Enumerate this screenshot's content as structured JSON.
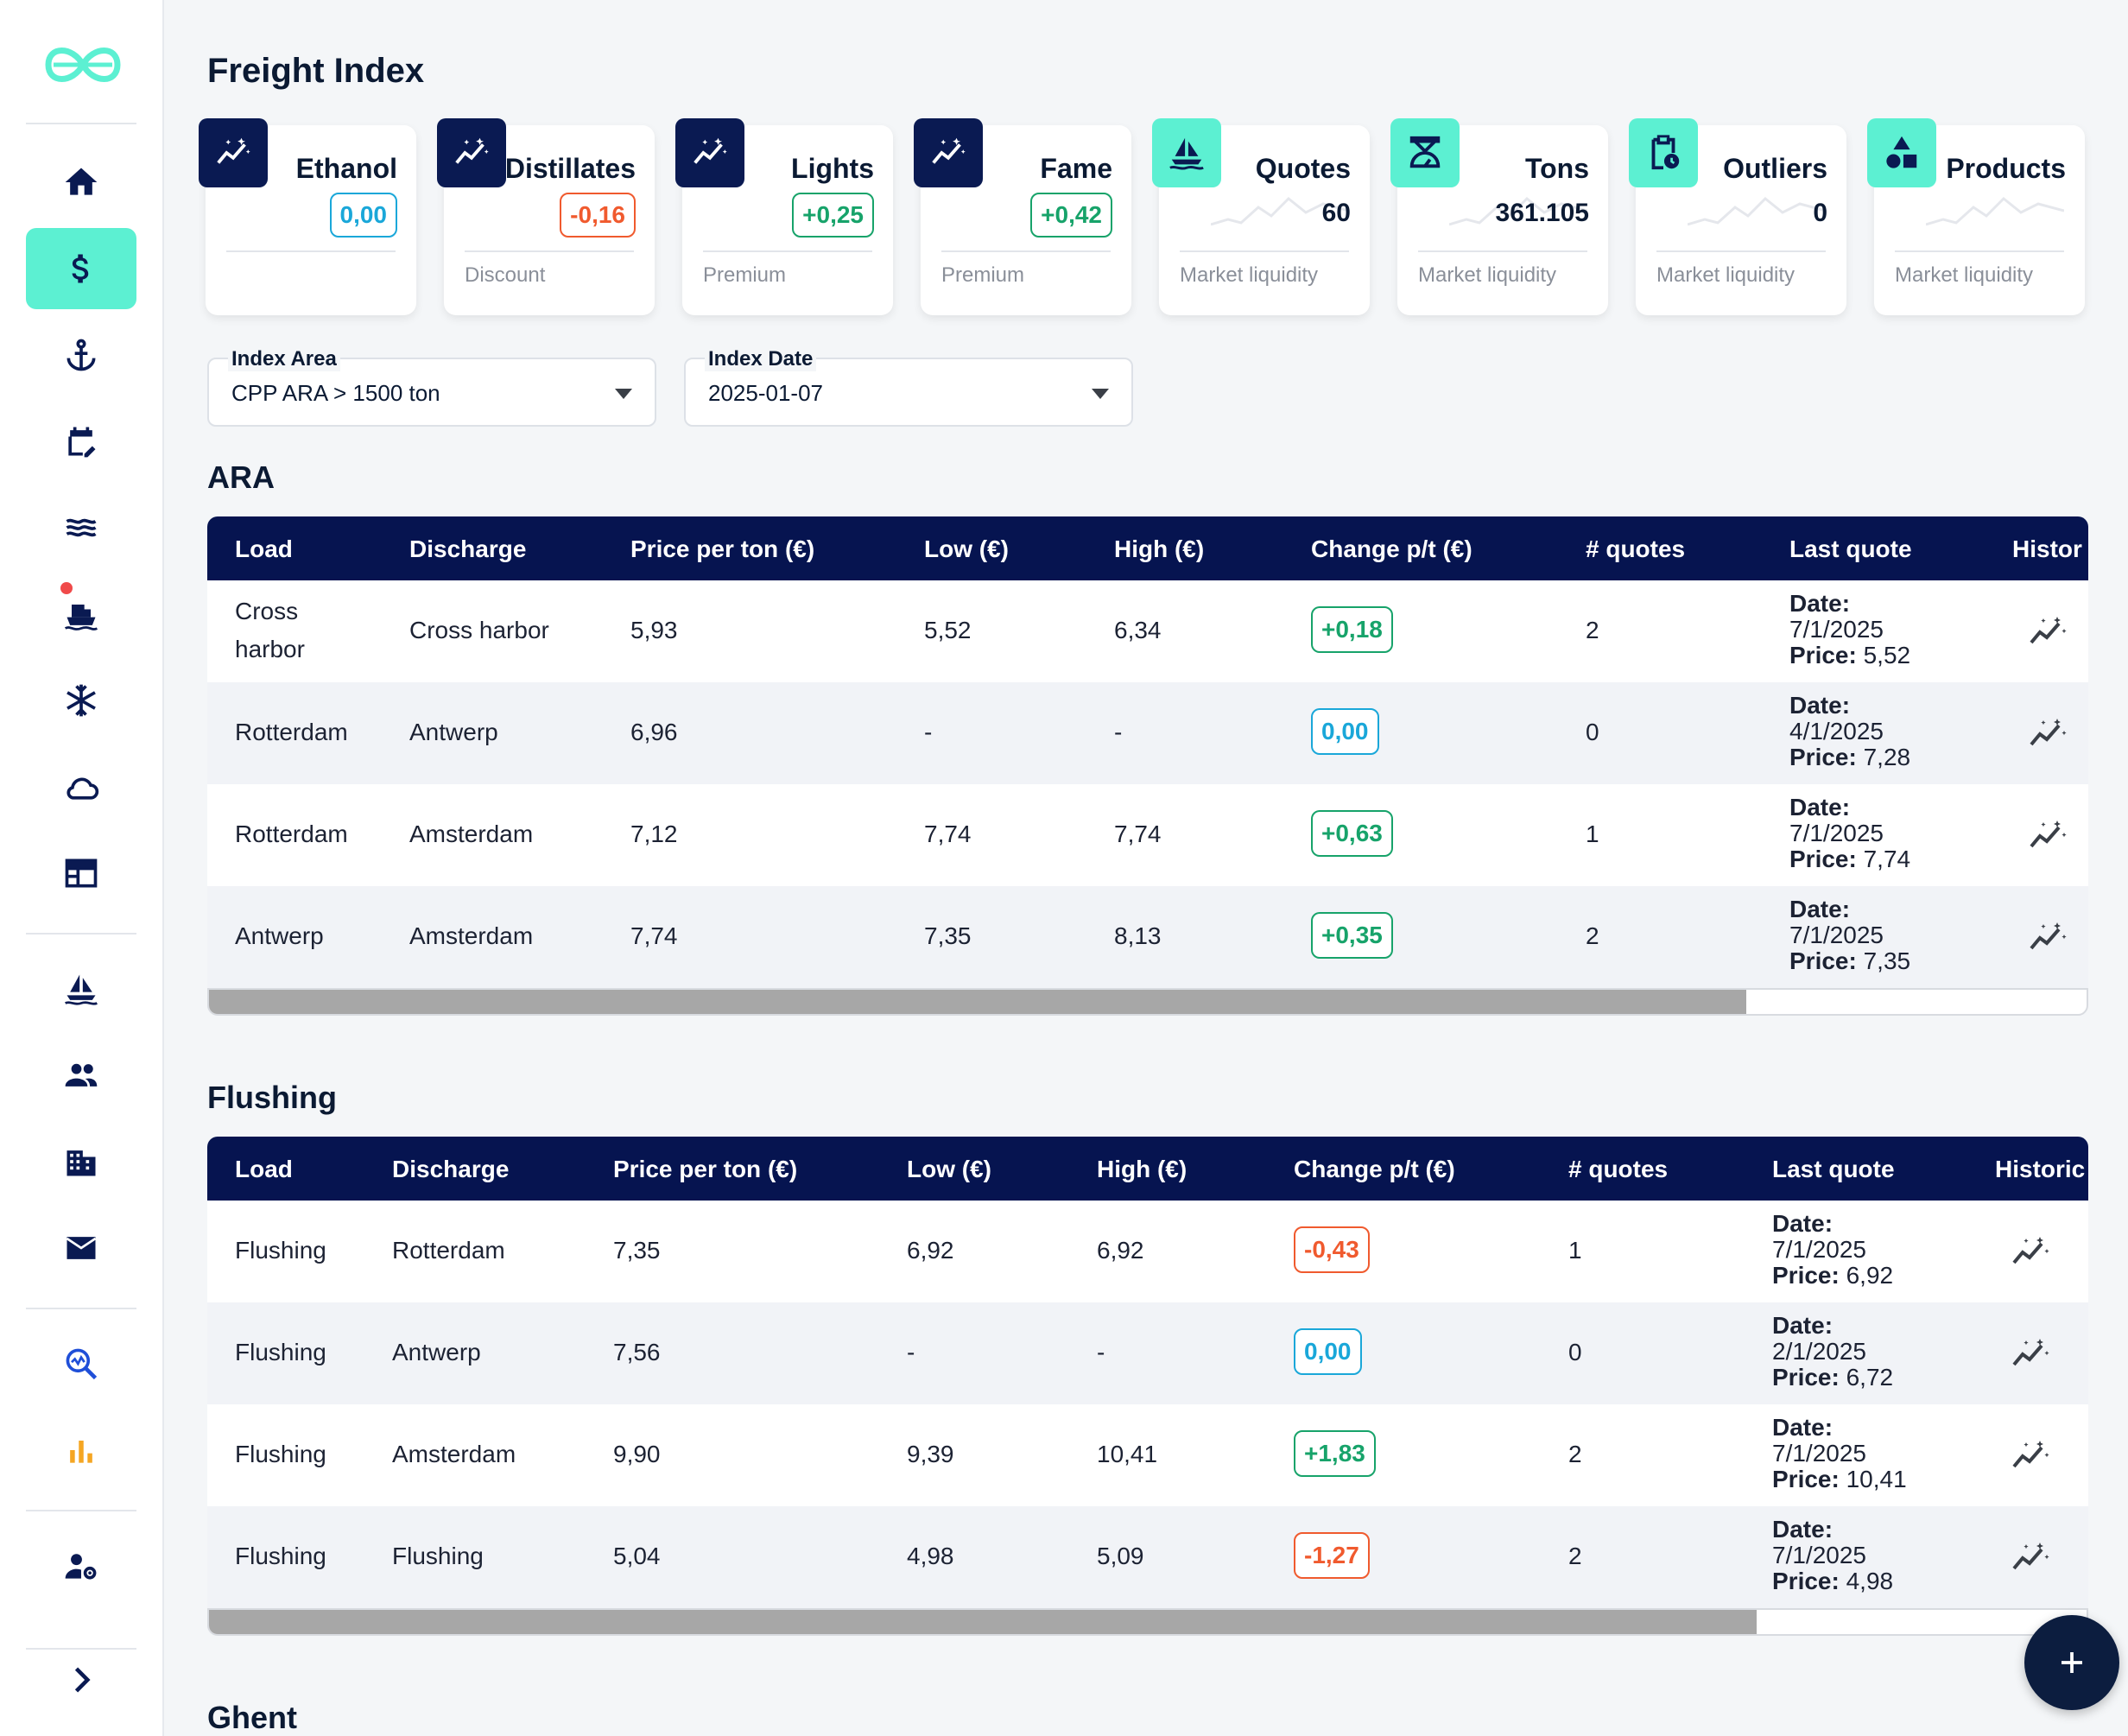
{
  "page": {
    "title": "Freight Index"
  },
  "kpis": [
    {
      "title": "Ethanol",
      "badge": "0,00",
      "badge_kind": "zero",
      "sub": "",
      "icon": "trend-sparkle-icon"
    },
    {
      "title": "Distillates",
      "badge": "-0,16",
      "badge_kind": "neg",
      "sub": "Discount",
      "icon": "trend-sparkle-icon"
    },
    {
      "title": "Lights",
      "badge": "+0,25",
      "badge_kind": "pos",
      "sub": "Premium",
      "icon": "trend-sparkle-icon"
    },
    {
      "title": "Fame",
      "badge": "+0,42",
      "badge_kind": "pos",
      "sub": "Premium",
      "icon": "trend-sparkle-icon"
    },
    {
      "title": "Quotes",
      "value": "60",
      "sub": "Market liquidity",
      "icon": "sailboat-icon"
    },
    {
      "title": "Tons",
      "value": "361.105",
      "sub": "Market liquidity",
      "icon": "scale-icon"
    },
    {
      "title": "Outliers",
      "value": "0",
      "sub": "Market liquidity",
      "icon": "clipboard-clock-icon"
    },
    {
      "title": "Products",
      "value": "",
      "sub": "Market liquidity",
      "icon": "shapes-icon"
    }
  ],
  "filters": {
    "index_area": {
      "label": "Index Area",
      "value": "CPP ARA > 1500 ton"
    },
    "index_date": {
      "label": "Index Date",
      "value": "2025-01-07"
    }
  },
  "columns": [
    "Load",
    "Discharge",
    "Price per ton (€)",
    "Low (€)",
    "High (€)",
    "Change p/t (€)",
    "# quotes",
    "Last quote"
  ],
  "sections": [
    {
      "title": "ARA",
      "last_col": "Histor",
      "rows": [
        {
          "load": "Cross harbor",
          "discharge": "Cross harbor",
          "price": "5,93",
          "low": "5,52",
          "high": "6,34",
          "change": "+0,18",
          "change_kind": "pos",
          "quotes": "2",
          "date": "7/1/2025",
          "last_price": "5,52"
        },
        {
          "load": "Rotterdam",
          "discharge": "Antwerp",
          "price": "6,96",
          "low": "-",
          "high": "-",
          "change": "0,00",
          "change_kind": "zero",
          "quotes": "0",
          "date": "4/1/2025",
          "last_price": "7,28"
        },
        {
          "load": "Rotterdam",
          "discharge": "Amsterdam",
          "price": "7,12",
          "low": "7,74",
          "high": "7,74",
          "change": "+0,63",
          "change_kind": "pos",
          "quotes": "1",
          "date": "7/1/2025",
          "last_price": "7,74"
        },
        {
          "load": "Antwerp",
          "discharge": "Amsterdam",
          "price": "7,74",
          "low": "7,35",
          "high": "8,13",
          "change": "+0,35",
          "change_kind": "pos",
          "quotes": "2",
          "date": "7/1/2025",
          "last_price": "7,35"
        }
      ]
    },
    {
      "title": "Flushing",
      "last_col": "Historic",
      "rows": [
        {
          "load": "Flushing",
          "discharge": "Rotterdam",
          "price": "7,35",
          "low": "6,92",
          "high": "6,92",
          "change": "-0,43",
          "change_kind": "neg",
          "quotes": "1",
          "date": "7/1/2025",
          "last_price": "6,92"
        },
        {
          "load": "Flushing",
          "discharge": "Antwerp",
          "price": "7,56",
          "low": "-",
          "high": "-",
          "change": "0,00",
          "change_kind": "zero",
          "quotes": "0",
          "date": "2/1/2025",
          "last_price": "6,72"
        },
        {
          "load": "Flushing",
          "discharge": "Amsterdam",
          "price": "9,90",
          "low": "9,39",
          "high": "10,41",
          "change": "+1,83",
          "change_kind": "pos",
          "quotes": "2",
          "date": "7/1/2025",
          "last_price": "10,41"
        },
        {
          "load": "Flushing",
          "discharge": "Flushing",
          "price": "5,04",
          "low": "4,98",
          "high": "5,09",
          "change": "-1,27",
          "change_kind": "neg",
          "quotes": "2",
          "date": "7/1/2025",
          "last_price": "4,98"
        }
      ]
    },
    {
      "title": "Ghent"
    }
  ],
  "labels": {
    "date": "Date:",
    "price": "Price:"
  },
  "sidebar": {
    "items": [
      "home-icon",
      "dollar-icon",
      "anchor-icon",
      "calendar-edit-icon",
      "waves-icon",
      "ship-icon",
      "snowflake-icon",
      "cloud-icon",
      "table-icon",
      "sailboat-icon",
      "people-icon",
      "building-icon",
      "mail-icon",
      "search-chart-icon",
      "bar-chart-icon",
      "user-settings-icon"
    ],
    "active": "dollar-icon"
  },
  "colors": {
    "navy": "#061450",
    "teal": "#5cf0d2",
    "positive": "#17a36a",
    "negative": "#f05a2e",
    "neutral": "#1aa7d9"
  }
}
